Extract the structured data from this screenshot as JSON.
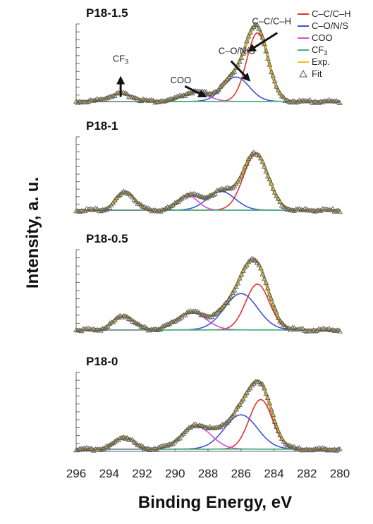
{
  "chart_data": {
    "type": "line",
    "xlabel": "Binding Energy, eV",
    "ylabel": "Intensity, a. u.",
    "xlim": [
      296,
      280
    ],
    "x_reversed": true,
    "x_ticks": [
      "296",
      "294",
      "292",
      "290",
      "288",
      "286",
      "284",
      "282",
      "280"
    ],
    "legend_position": "top-right",
    "legend": [
      {
        "label": "C–C/C–H",
        "color": "#e8312f",
        "marker": "line"
      },
      {
        "label": "C–O/N/S",
        "color": "#3a55d6",
        "marker": "line"
      },
      {
        "label": "COO",
        "color": "#d64bd6",
        "marker": "line"
      },
      {
        "label": "CF",
        "sub": "3",
        "color": "#3fb57a",
        "marker": "line"
      },
      {
        "label": "Exp.",
        "color": "#e8c21f",
        "marker": "line"
      },
      {
        "label": "Fit",
        "color": "#555555",
        "marker": "triangle"
      }
    ],
    "component_order": [
      "cc",
      "co",
      "coo",
      "cf3"
    ],
    "panels": [
      {
        "title": "P18-1.5",
        "baseline": 0.02,
        "ymax": 1.0,
        "peaks": [
          {
            "component": "cc",
            "center": 285.0,
            "sigma": 0.65,
            "amplitude": 0.9
          },
          {
            "component": "co",
            "center": 286.3,
            "sigma": 0.8,
            "amplitude": 0.32
          },
          {
            "component": "coo",
            "center": 288.8,
            "sigma": 0.8,
            "amplitude": 0.12
          },
          {
            "component": "cf3",
            "center": 293.3,
            "sigma": 0.75,
            "amplitude": 0.1
          }
        ],
        "annotations": [
          {
            "text": "C–C/C–H",
            "sub": "",
            "arrow_from": [
              283.8,
              0.92
            ],
            "arrow_to": [
              285.4,
              0.7
            ]
          },
          {
            "text": "C–O/N/S",
            "sub": "",
            "arrow_from": [
              286.6,
              0.55
            ],
            "arrow_to": [
              285.6,
              0.32
            ]
          },
          {
            "text": "COO",
            "sub": "",
            "arrow_from": [
              289.4,
              0.22
            ],
            "arrow_to": [
              288.3,
              0.1
            ]
          },
          {
            "text": "CF",
            "sub": "3",
            "arrow_from": [
              293.3,
              0.08
            ],
            "arrow_to": [
              293.3,
              0.3
            ]
          }
        ]
      },
      {
        "title": "P18-1",
        "baseline": 0.02,
        "ymax": 1.0,
        "peaks": [
          {
            "component": "cc",
            "center": 285.1,
            "sigma": 0.75,
            "amplitude": 0.78
          },
          {
            "component": "co",
            "center": 287.2,
            "sigma": 0.85,
            "amplitude": 0.26
          },
          {
            "component": "coo",
            "center": 289.2,
            "sigma": 0.6,
            "amplitude": 0.2
          },
          {
            "component": "cf3",
            "center": 293.0,
            "sigma": 0.55,
            "amplitude": 0.25
          }
        ],
        "annotations": []
      },
      {
        "title": "P18-0.5",
        "baseline": 0.02,
        "ymax": 1.0,
        "peaks": [
          {
            "component": "cc",
            "center": 285.0,
            "sigma": 0.72,
            "amplitude": 0.58
          },
          {
            "component": "co",
            "center": 286.0,
            "sigma": 1.0,
            "amplitude": 0.46
          },
          {
            "component": "coo",
            "center": 289.0,
            "sigma": 0.9,
            "amplitude": 0.22
          },
          {
            "component": "cf3",
            "center": 293.1,
            "sigma": 0.6,
            "amplitude": 0.18
          }
        ],
        "annotations": []
      },
      {
        "title": "P18-0",
        "baseline": 0.03,
        "ymax": 1.0,
        "peaks": [
          {
            "component": "cc",
            "center": 284.8,
            "sigma": 0.7,
            "amplitude": 0.65
          },
          {
            "component": "co",
            "center": 286.0,
            "sigma": 1.0,
            "amplitude": 0.45
          },
          {
            "component": "coo",
            "center": 288.7,
            "sigma": 0.9,
            "amplitude": 0.3
          },
          {
            "component": "cf3",
            "center": 293.1,
            "sigma": 0.55,
            "amplitude": 0.16
          }
        ],
        "annotations": []
      }
    ]
  }
}
